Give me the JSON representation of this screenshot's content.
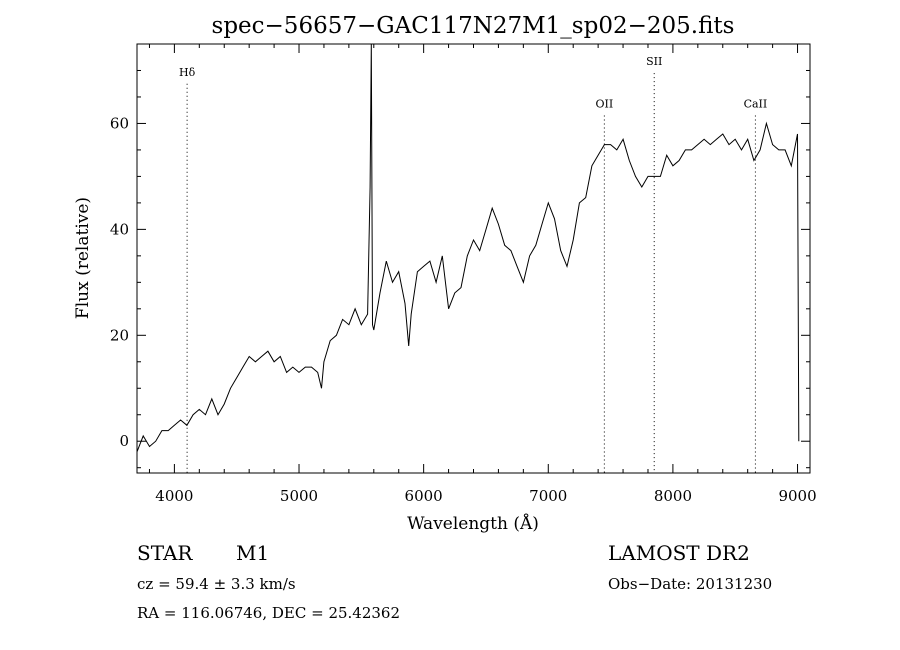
{
  "chart_data": {
    "type": "line",
    "title": "spec−56657−GAC117N27M1_sp02−205.fits",
    "xlabel": "Wavelength (Å)",
    "ylabel": "Flux (relative)",
    "xlim": [
      3700,
      9100
    ],
    "ylim": [
      -6,
      75
    ],
    "x_ticks": [
      4000,
      5000,
      6000,
      7000,
      8000,
      9000
    ],
    "y_ticks": [
      0,
      20,
      40,
      60
    ],
    "grid": false,
    "series": [
      {
        "x": [
          3700,
          3750,
          3800,
          3850,
          3900,
          3950,
          4000,
          4050,
          4100,
          4150,
          4200,
          4250,
          4300,
          4350,
          4400,
          4450,
          4500,
          4550,
          4600,
          4650,
          4700,
          4750,
          4800,
          4850,
          4900,
          4950,
          5000,
          5050,
          5100,
          5150,
          5180,
          5200,
          5250,
          5300,
          5350,
          5400,
          5450,
          5500,
          5550,
          5570,
          5580,
          5590,
          5600,
          5650,
          5700,
          5750,
          5800,
          5850,
          5880,
          5900,
          5950,
          6000,
          6050,
          6100,
          6150,
          6200,
          6250,
          6300,
          6350,
          6400,
          6450,
          6500,
          6550,
          6600,
          6650,
          6700,
          6750,
          6800,
          6850,
          6900,
          6950,
          7000,
          7050,
          7100,
          7150,
          7200,
          7250,
          7300,
          7350,
          7400,
          7450,
          7500,
          7550,
          7600,
          7650,
          7700,
          7750,
          7800,
          7850,
          7900,
          7950,
          8000,
          8050,
          8100,
          8150,
          8200,
          8250,
          8300,
          8350,
          8400,
          8450,
          8500,
          8550,
          8600,
          8650,
          8700,
          8750,
          8800,
          8850,
          8900,
          8950,
          9000,
          9010
        ],
        "y": [
          -2,
          1,
          -1,
          0,
          2,
          2,
          3,
          4,
          3,
          5,
          6,
          5,
          8,
          5,
          7,
          10,
          12,
          14,
          16,
          15,
          16,
          17,
          15,
          16,
          13,
          14,
          13,
          14,
          14,
          13,
          10,
          15,
          19,
          20,
          23,
          22,
          25,
          22,
          24,
          48,
          75,
          22,
          21,
          28,
          34,
          30,
          32,
          26,
          18,
          24,
          32,
          33,
          34,
          30,
          35,
          25,
          28,
          29,
          35,
          38,
          36,
          40,
          44,
          41,
          37,
          36,
          33,
          30,
          35,
          37,
          41,
          45,
          42,
          36,
          33,
          38,
          45,
          46,
          52,
          54,
          56,
          56,
          55,
          57,
          53,
          50,
          48,
          50,
          50,
          50,
          54,
          52,
          53,
          55,
          55,
          56,
          57,
          56,
          57,
          58,
          56,
          57,
          55,
          57,
          53,
          55,
          60,
          56,
          55,
          55,
          52,
          58,
          0
        ]
      }
    ],
    "lines": [
      {
        "label": "Hδ",
        "x": 4102,
        "label_y": 69
      },
      {
        "label": "OII",
        "x": 7450,
        "label_y": 63
      },
      {
        "label": "SII",
        "x": 7850,
        "label_y": 71
      },
      {
        "label": "CaII",
        "x": 8662,
        "label_y": 63
      }
    ]
  },
  "info": {
    "object_type": "STAR",
    "subclass": "M1",
    "survey": "LAMOST DR2",
    "cz": "cz = 59.4 ± 3.3 km/s",
    "obs_date": "Obs−Date: 20131230",
    "coords": "RA = 116.06746, DEC =  25.42362"
  }
}
